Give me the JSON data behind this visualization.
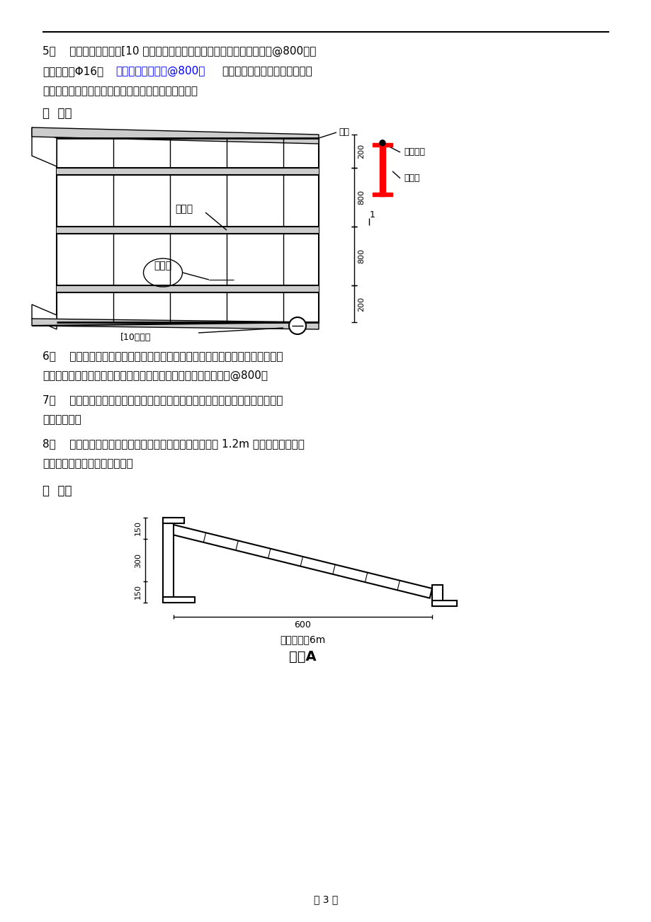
{
  "bg_color": "#ffffff",
  "text_color": "#000000",
  "blue_color": "#0000ff",
  "red_color": "#ff0000",
  "gray_color": "#808080",
  "line_color": "#000000",
  "page_number": "第 3 页",
  "section5_text1": "5、    模板主龙骨采用双[10 槽钢对接而成，内侧模主龙骨沿纵向布置间距@800。对",
  "section5_text2": "拉螺栓采用Φ16，",
  "section5_text2_blue": "横、竖向间距均为@800，",
  "section5_text2_rest": "螺栓与空箱底板钢筋焊接，待模",
  "section5_text3": "板校正后，支撑的加固螺栓拧紧。具体见（如图三）。",
  "fig3_label": "图  三：",
  "label_mban": "模板",
  "label_duila": "对拉螺栓",
  "label_zhulg1": "主龙骨",
  "label_zhulg2": "主龙骨",
  "label_zhulg3": "主龙骨",
  "label_xiaolg": "[10小龙骨",
  "dim_200_top": "200",
  "dim_800_mid": "800",
  "dim_1": "1",
  "dim_800_bot": "800",
  "dim_200_bot": "200",
  "section6_text1": "6、    坞室外侧定型大模吊装到位后，对两侧外模加固并用钢管进行锁口。异型侧",
  "section6_text2": "模次龙骨纵向布置间距如异型模加固图所示，主龙骨竖向布置间距@800。",
  "section7_text1": "7、    钢管与次龙骨无需硬性连接，钢管套在次龙骨焊接的钢筋头上，钢管与次龙",
  "section7_text2": "骨挤紧即可。",
  "section8_text1": "8、    钢管与主龙骨使用十字扣件连接。中间立杆使用两根 1.2m 钢管用三个十字扣",
  "section8_text2": "件连接（见异形模板加固图）。",
  "fig5_label": "图  五：",
  "dim_150_top": "150",
  "dim_300": "300",
  "dim_150_bot": "150",
  "dim_600": "600",
  "label_6m": "单块长度为6m",
  "label_yixing": "异形A"
}
